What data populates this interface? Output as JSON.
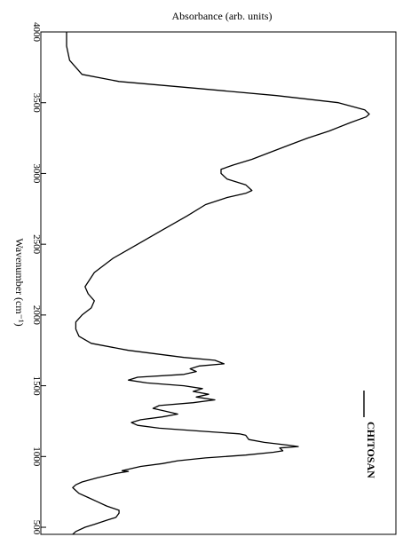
{
  "chart_data": {
    "type": "line",
    "orientation": "rotated",
    "title": "",
    "xlabel": "Wavenumber (cm⁻¹)",
    "ylabel": "Absorbance (arb. units)",
    "xlim": [
      4000,
      450
    ],
    "x_ticks": [
      4000,
      3500,
      3000,
      2500,
      2000,
      1500,
      1000,
      500
    ],
    "x_tick_labels": [
      "4000",
      "3500",
      "3000",
      "2500",
      "2000",
      "1500",
      "1000",
      "500"
    ],
    "ylim": [
      0,
      1
    ],
    "y_ticks_shown": false,
    "grid": false,
    "legend": "bottom-right",
    "series": [
      {
        "name": "CHITOSAN",
        "color": "#000000",
        "points": [
          [
            4000,
            0.02
          ],
          [
            3900,
            0.02
          ],
          [
            3800,
            0.03
          ],
          [
            3700,
            0.07
          ],
          [
            3650,
            0.19
          ],
          [
            3600,
            0.45
          ],
          [
            3550,
            0.7
          ],
          [
            3500,
            0.9
          ],
          [
            3450,
            0.985
          ],
          [
            3420,
            1.0
          ],
          [
            3400,
            0.99
          ],
          [
            3360,
            0.94
          ],
          [
            3300,
            0.87
          ],
          [
            3250,
            0.8
          ],
          [
            3200,
            0.74
          ],
          [
            3150,
            0.68
          ],
          [
            3100,
            0.62
          ],
          [
            3060,
            0.56
          ],
          [
            3030,
            0.52
          ],
          [
            3000,
            0.52
          ],
          [
            2960,
            0.54
          ],
          [
            2920,
            0.6
          ],
          [
            2880,
            0.62
          ],
          [
            2860,
            0.6
          ],
          [
            2830,
            0.54
          ],
          [
            2780,
            0.47
          ],
          [
            2700,
            0.41
          ],
          [
            2600,
            0.33
          ],
          [
            2500,
            0.25
          ],
          [
            2400,
            0.17
          ],
          [
            2300,
            0.11
          ],
          [
            2200,
            0.08
          ],
          [
            2150,
            0.09
          ],
          [
            2100,
            0.11
          ],
          [
            2050,
            0.1
          ],
          [
            2000,
            0.07
          ],
          [
            1950,
            0.05
          ],
          [
            1900,
            0.05
          ],
          [
            1850,
            0.06
          ],
          [
            1800,
            0.1
          ],
          [
            1750,
            0.22
          ],
          [
            1700,
            0.4
          ],
          [
            1680,
            0.5
          ],
          [
            1655,
            0.53
          ],
          [
            1640,
            0.45
          ],
          [
            1620,
            0.42
          ],
          [
            1600,
            0.44
          ],
          [
            1580,
            0.4
          ],
          [
            1560,
            0.25
          ],
          [
            1540,
            0.22
          ],
          [
            1520,
            0.28
          ],
          [
            1500,
            0.4
          ],
          [
            1480,
            0.46
          ],
          [
            1460,
            0.43
          ],
          [
            1440,
            0.48
          ],
          [
            1420,
            0.44
          ],
          [
            1400,
            0.5
          ],
          [
            1380,
            0.43
          ],
          [
            1360,
            0.32
          ],
          [
            1340,
            0.3
          ],
          [
            1320,
            0.34
          ],
          [
            1300,
            0.38
          ],
          [
            1280,
            0.33
          ],
          [
            1260,
            0.26
          ],
          [
            1240,
            0.23
          ],
          [
            1220,
            0.25
          ],
          [
            1200,
            0.32
          ],
          [
            1180,
            0.45
          ],
          [
            1160,
            0.58
          ],
          [
            1150,
            0.6
          ],
          [
            1120,
            0.61
          ],
          [
            1100,
            0.66
          ],
          [
            1080,
            0.74
          ],
          [
            1070,
            0.77
          ],
          [
            1060,
            0.71
          ],
          [
            1040,
            0.72
          ],
          [
            1030,
            0.69
          ],
          [
            1010,
            0.6
          ],
          [
            990,
            0.47
          ],
          [
            970,
            0.38
          ],
          [
            950,
            0.33
          ],
          [
            930,
            0.26
          ],
          [
            900,
            0.2
          ],
          [
            895,
            0.22
          ],
          [
            880,
            0.18
          ],
          [
            850,
            0.12
          ],
          [
            820,
            0.07
          ],
          [
            800,
            0.05
          ],
          [
            780,
            0.04
          ],
          [
            760,
            0.05
          ],
          [
            740,
            0.06
          ],
          [
            710,
            0.09
          ],
          [
            680,
            0.12
          ],
          [
            650,
            0.15
          ],
          [
            620,
            0.19
          ],
          [
            600,
            0.19
          ],
          [
            570,
            0.18
          ],
          [
            550,
            0.15
          ],
          [
            520,
            0.11
          ],
          [
            500,
            0.08
          ],
          [
            470,
            0.05
          ],
          [
            450,
            0.04
          ]
        ]
      }
    ]
  }
}
